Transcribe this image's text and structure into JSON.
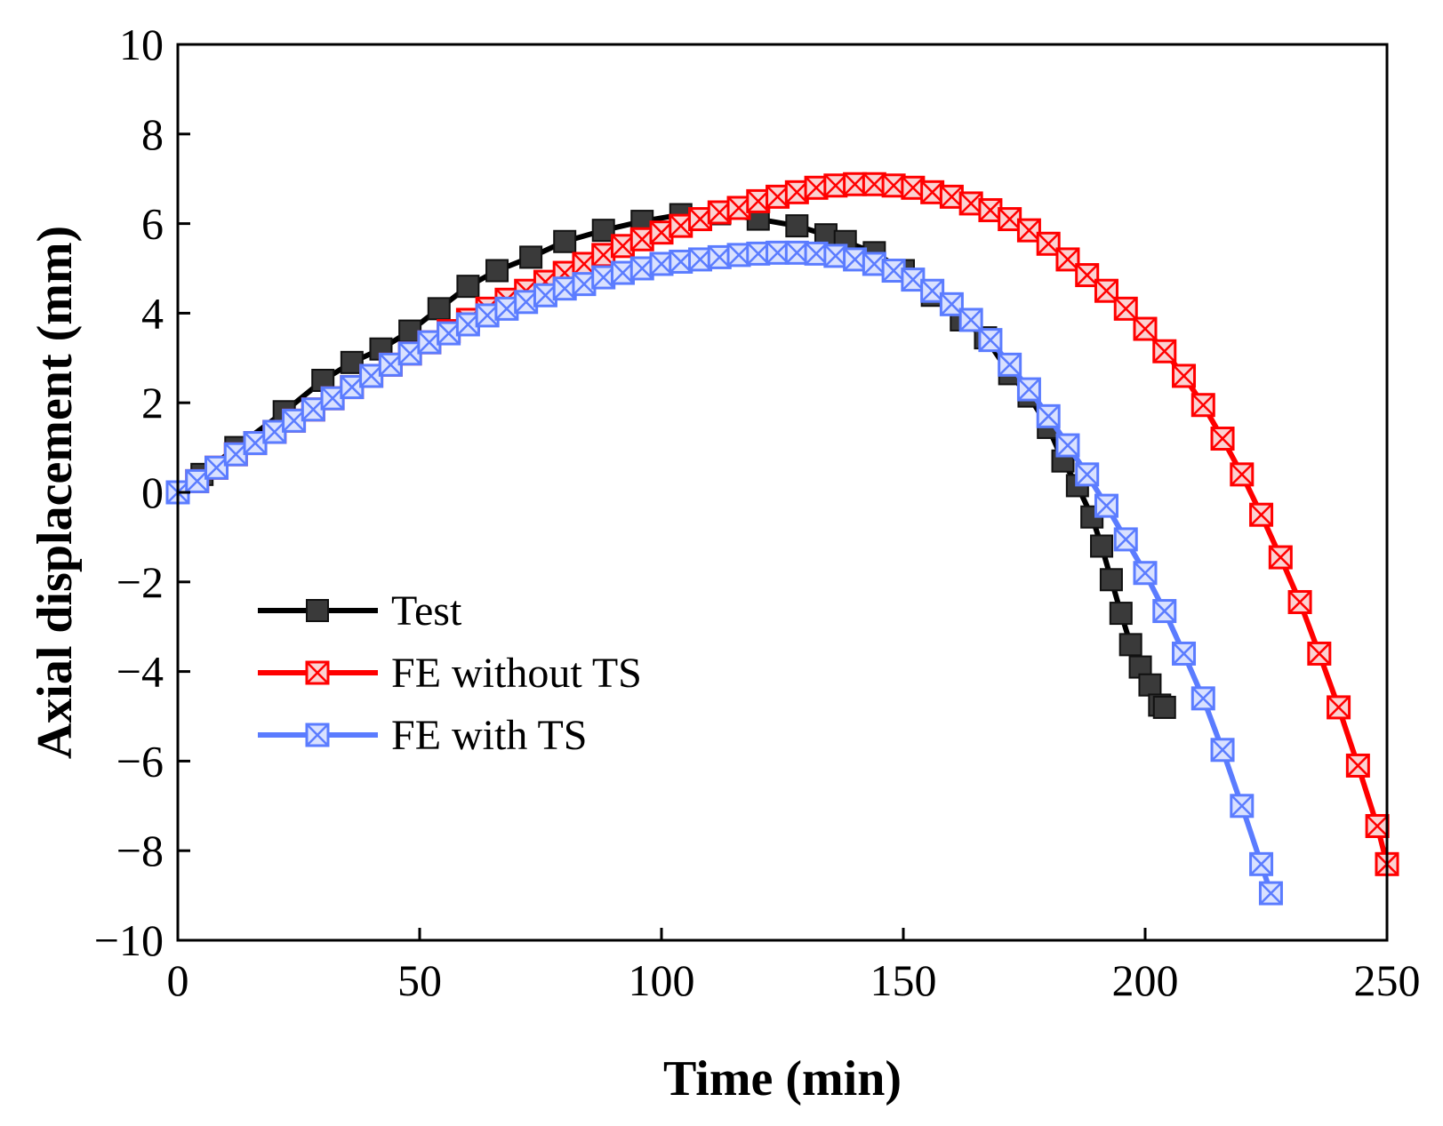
{
  "chart_data": {
    "type": "line",
    "title": "",
    "xlabel": "Time (min)",
    "ylabel": "Axial displacement (mm)",
    "xlim": [
      0,
      250
    ],
    "ylim": [
      -10,
      10
    ],
    "xticks": [
      0,
      50,
      100,
      150,
      200,
      250
    ],
    "yticks": [
      -10,
      -8,
      -6,
      -4,
      -2,
      0,
      2,
      4,
      6,
      8,
      10
    ],
    "xtick_labels": [
      "0",
      "50",
      "100",
      "150",
      "200",
      "250"
    ],
    "ytick_labels": [
      "−10",
      "−8",
      "−6",
      "−4",
      "−2",
      "0",
      "2",
      "4",
      "6",
      "8",
      "10"
    ],
    "grid": false,
    "legend_position": "bottom-left",
    "series": [
      {
        "name": "Test",
        "color": "#000000",
        "marker": "filled-square",
        "marker_fill": "#3a3a3a",
        "x": [
          0,
          5,
          12,
          22,
          30,
          36,
          42,
          48,
          54,
          60,
          66,
          73,
          80,
          88,
          96,
          104,
          112,
          120,
          128,
          134,
          138,
          144,
          150,
          156,
          162,
          167,
          172,
          176,
          180,
          183,
          186,
          189,
          191,
          193,
          195,
          197,
          199,
          201,
          203,
          204
        ],
        "y": [
          0,
          0.4,
          1.0,
          1.8,
          2.5,
          2.9,
          3.2,
          3.6,
          4.1,
          4.6,
          4.95,
          5.25,
          5.6,
          5.85,
          6.05,
          6.2,
          6.22,
          6.1,
          5.95,
          5.75,
          5.6,
          5.35,
          4.95,
          4.4,
          3.85,
          3.45,
          2.65,
          2.15,
          1.45,
          0.7,
          0.15,
          -0.55,
          -1.2,
          -1.95,
          -2.7,
          -3.4,
          -3.9,
          -4.3,
          -4.75,
          -4.8
        ]
      },
      {
        "name": "FE without TS",
        "color": "#ff0000",
        "marker": "crossed-square",
        "marker_fill": "#fbd2d2",
        "x": [
          0,
          4,
          8,
          12,
          16,
          20,
          24,
          28,
          32,
          36,
          40,
          44,
          48,
          52,
          56,
          60,
          64,
          68,
          72,
          76,
          80,
          84,
          88,
          92,
          96,
          100,
          104,
          108,
          112,
          116,
          120,
          124,
          128,
          132,
          136,
          140,
          144,
          148,
          152,
          156,
          160,
          164,
          168,
          172,
          176,
          180,
          184,
          188,
          192,
          196,
          200,
          204,
          208,
          212,
          216,
          220,
          224,
          228,
          232,
          236,
          240,
          244,
          248,
          250
        ],
        "y": [
          0,
          0.25,
          0.55,
          0.85,
          1.1,
          1.35,
          1.6,
          1.85,
          2.1,
          2.35,
          2.6,
          2.85,
          3.1,
          3.35,
          3.6,
          3.85,
          4.1,
          4.3,
          4.5,
          4.7,
          4.9,
          5.1,
          5.3,
          5.5,
          5.65,
          5.8,
          5.95,
          6.1,
          6.25,
          6.35,
          6.5,
          6.6,
          6.7,
          6.8,
          6.85,
          6.88,
          6.88,
          6.85,
          6.8,
          6.7,
          6.6,
          6.45,
          6.3,
          6.1,
          5.85,
          5.55,
          5.2,
          4.85,
          4.5,
          4.1,
          3.65,
          3.15,
          2.6,
          1.95,
          1.2,
          0.4,
          -0.5,
          -1.45,
          -2.45,
          -3.6,
          -4.8,
          -6.1,
          -7.45,
          -8.3
        ]
      },
      {
        "name": "FE with TS",
        "color": "#5b7cff",
        "marker": "crossed-square",
        "marker_fill": "#d9e1ff",
        "x": [
          0,
          4,
          8,
          12,
          16,
          20,
          24,
          28,
          32,
          36,
          40,
          44,
          48,
          52,
          56,
          60,
          64,
          68,
          72,
          76,
          80,
          84,
          88,
          92,
          96,
          100,
          104,
          108,
          112,
          116,
          120,
          124,
          128,
          132,
          136,
          140,
          144,
          148,
          152,
          156,
          160,
          164,
          168,
          172,
          176,
          180,
          184,
          188,
          192,
          196,
          200,
          204,
          208,
          212,
          216,
          220,
          224,
          226
        ],
        "y": [
          0,
          0.25,
          0.55,
          0.85,
          1.1,
          1.35,
          1.6,
          1.85,
          2.1,
          2.35,
          2.6,
          2.85,
          3.1,
          3.35,
          3.55,
          3.75,
          3.95,
          4.1,
          4.25,
          4.4,
          4.55,
          4.65,
          4.8,
          4.9,
          5.0,
          5.1,
          5.15,
          5.2,
          5.25,
          5.3,
          5.33,
          5.35,
          5.35,
          5.33,
          5.28,
          5.2,
          5.1,
          4.95,
          4.75,
          4.5,
          4.2,
          3.85,
          3.4,
          2.85,
          2.3,
          1.7,
          1.05,
          0.4,
          -0.3,
          -1.05,
          -1.8,
          -2.65,
          -3.6,
          -4.6,
          -5.75,
          -7.0,
          -8.3,
          -8.95
        ]
      }
    ]
  }
}
